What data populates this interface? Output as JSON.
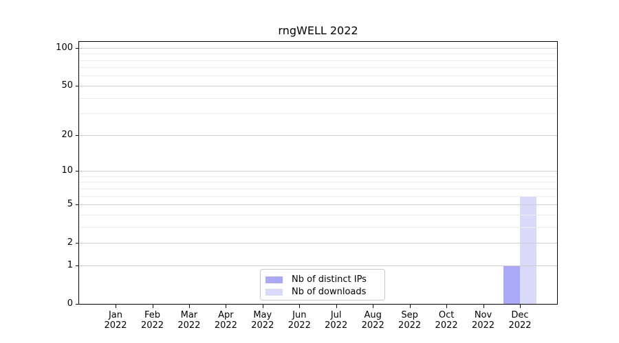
{
  "chart_data": {
    "type": "bar",
    "title": "rngWELL 2022",
    "x_ticks": [
      {
        "line1": "Jan",
        "line2": "2022"
      },
      {
        "line1": "Feb",
        "line2": "2022"
      },
      {
        "line1": "Mar",
        "line2": "2022"
      },
      {
        "line1": "Apr",
        "line2": "2022"
      },
      {
        "line1": "May",
        "line2": "2022"
      },
      {
        "line1": "Jun",
        "line2": "2022"
      },
      {
        "line1": "Jul",
        "line2": "2022"
      },
      {
        "line1": "Aug",
        "line2": "2022"
      },
      {
        "line1": "Sep",
        "line2": "2022"
      },
      {
        "line1": "Oct",
        "line2": "2022"
      },
      {
        "line1": "Nov",
        "line2": "2022"
      },
      {
        "line1": "Dec",
        "line2": "2022"
      }
    ],
    "series": [
      {
        "name": "Nb of distinct IPs",
        "color": "#a9a9f7",
        "values": [
          0,
          0,
          0,
          0,
          0,
          0,
          0,
          0,
          0,
          0,
          0,
          1
        ]
      },
      {
        "name": "Nb of downloads",
        "color": "#d9d9fa",
        "values": [
          0,
          0,
          0,
          0,
          0,
          0,
          0,
          0,
          0,
          0,
          0,
          6
        ]
      }
    ],
    "y_axis": {
      "scale": "log1p",
      "major_ticks": [
        0,
        1,
        2,
        5,
        10,
        20,
        50,
        100
      ],
      "minor_gridlines": [
        3,
        4,
        6,
        7,
        8,
        9,
        30,
        40,
        60,
        70,
        80,
        90
      ],
      "range_top_value": 112
    },
    "legend": {
      "position": "lower center"
    },
    "grid": true
  }
}
